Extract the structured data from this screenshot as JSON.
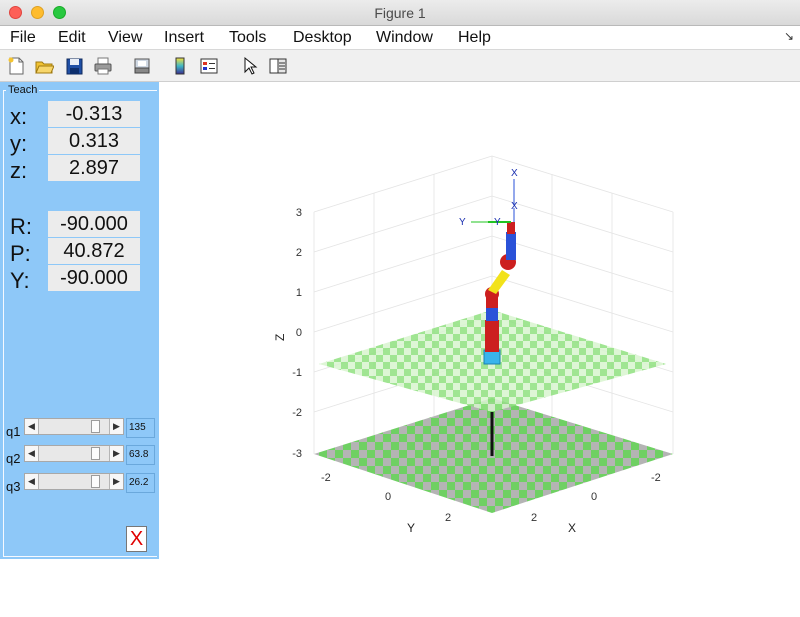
{
  "window": {
    "title": "Figure 1"
  },
  "menu": {
    "items": [
      "File",
      "Edit",
      "View",
      "Insert",
      "Tools",
      "Desktop",
      "Window",
      "Help"
    ],
    "dock_icon": "dock-arrow-icon"
  },
  "toolbar": {
    "icons": [
      "new-figure-icon",
      "open-file-icon",
      "save-icon",
      "print-icon",
      "print-preview-icon",
      "colorbar-icon",
      "legend-icon",
      "pointer-icon",
      "property-editor-icon"
    ]
  },
  "teach": {
    "title": "Teach",
    "pose_labels": {
      "x": "x:",
      "y": "y:",
      "z": "z:",
      "r": "R:",
      "p": "P:",
      "yaw": "Y:"
    },
    "pose_values": {
      "x": "-0.313",
      "y": "0.313",
      "z": "2.897",
      "r": "-90.000",
      "p": "40.872",
      "yaw": "-90.000"
    },
    "joints": [
      {
        "label": "q1",
        "value": "135",
        "fraction": 0.85
      },
      {
        "label": "q2",
        "value": "63.8",
        "fraction": 0.85
      },
      {
        "label": "q3",
        "value": "26.2",
        "fraction": 0.85
      }
    ],
    "quit_label": "X"
  },
  "axes": {
    "zlabel": "Z",
    "ylabel": "Y",
    "xlabel": "X",
    "z_ticks": [
      "3",
      "2",
      "1",
      "0",
      "-1",
      "-2",
      "-3"
    ],
    "y_ticks": [
      "-2",
      "0",
      "2"
    ],
    "x_ticks": [
      "-2",
      "0",
      "2"
    ],
    "frame_labels": [
      "X",
      "X",
      "Y",
      "Y"
    ]
  },
  "colors": {
    "panel": "#8ec8f8",
    "floor_green": "#6fd063",
    "floor_gray": "#b4b4b4",
    "link_red": "#cc1f1f",
    "link_yellow": "#f2e21a",
    "link_blue": "#2a52d8",
    "base_cyan": "#39b4ec"
  }
}
